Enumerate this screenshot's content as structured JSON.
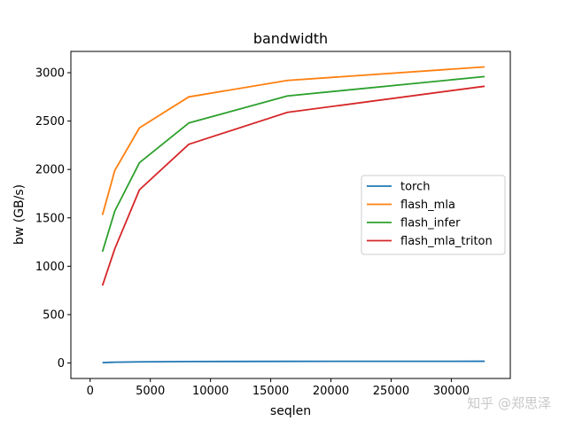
{
  "chart_data": {
    "type": "line",
    "title": "bandwidth",
    "xlabel": "seqlen",
    "ylabel": "bw (GB/s)",
    "xlim": [
      -1600,
      34900
    ],
    "ylim": [
      -160,
      3220
    ],
    "xticks": [
      0,
      5000,
      10000,
      15000,
      20000,
      25000,
      30000
    ],
    "xtick_labels": [
      "0",
      "5000",
      "10000",
      "15000",
      "20000",
      "25000",
      "30000"
    ],
    "yticks": [
      0,
      500,
      1000,
      1500,
      2000,
      2500,
      3000
    ],
    "ytick_labels": [
      "0",
      "500",
      "1000",
      "1500",
      "2000",
      "2500",
      "3000"
    ],
    "grid": false,
    "legend_position": "center-right",
    "x": [
      1024,
      2048,
      4096,
      8192,
      16384,
      32768
    ],
    "series": [
      {
        "name": "torch",
        "color": "#1f77b4",
        "values": [
          4,
          8,
          12,
          15,
          17,
          18
        ]
      },
      {
        "name": "flash_mla",
        "color": "#ff7f0e",
        "values": [
          1530,
          1990,
          2430,
          2750,
          2920,
          3060
        ]
      },
      {
        "name": "flash_infer",
        "color": "#2ca02c",
        "values": [
          1150,
          1570,
          2070,
          2480,
          2760,
          2960
        ]
      },
      {
        "name": "flash_mla_triton",
        "color": "#d62728",
        "values": [
          800,
          1180,
          1790,
          2260,
          2590,
          2860
        ]
      }
    ]
  },
  "watermark": "知乎 @郑思泽"
}
